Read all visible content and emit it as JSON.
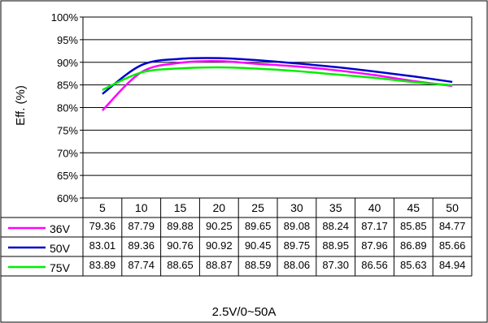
{
  "chart_data": {
    "type": "line",
    "ylabel": "Eff. (%)",
    "xlabel": "2.5V/0~50A",
    "ylim": [
      60,
      100
    ],
    "ytick_labels": [
      "100%",
      "95%",
      "90%",
      "85%",
      "80%",
      "75%",
      "70%",
      "65%",
      "60%"
    ],
    "categories": [
      "5",
      "10",
      "15",
      "20",
      "25",
      "30",
      "35",
      "40",
      "45",
      "50"
    ],
    "grid": true,
    "legend": "table-left",
    "series": [
      {
        "name": "36V",
        "color": "#ff00ff",
        "values": [
          79.36,
          87.79,
          89.88,
          90.25,
          89.65,
          89.08,
          88.24,
          87.17,
          85.85,
          84.77
        ],
        "labels": [
          "79.36",
          "87.79",
          "89.88",
          "90.25",
          "89.65",
          "89.08",
          "88.24",
          "87.17",
          "85.85",
          "84.77"
        ]
      },
      {
        "name": "50V",
        "color": "#0000cc",
        "values": [
          83.01,
          89.36,
          90.76,
          90.92,
          90.45,
          89.75,
          88.95,
          87.96,
          86.89,
          85.66
        ],
        "labels": [
          "83.01",
          "89.36",
          "90.76",
          "90.92",
          "90.45",
          "89.75",
          "88.95",
          "87.96",
          "86.89",
          "85.66"
        ]
      },
      {
        "name": "75V",
        "color": "#00ee00",
        "values": [
          83.89,
          87.74,
          88.65,
          88.87,
          88.59,
          88.06,
          87.3,
          86.56,
          85.63,
          84.94
        ],
        "labels": [
          "83.89",
          "87.74",
          "88.65",
          "88.87",
          "88.59",
          "88.06",
          "87.30",
          "86.56",
          "85.63",
          "84.94"
        ]
      }
    ]
  }
}
